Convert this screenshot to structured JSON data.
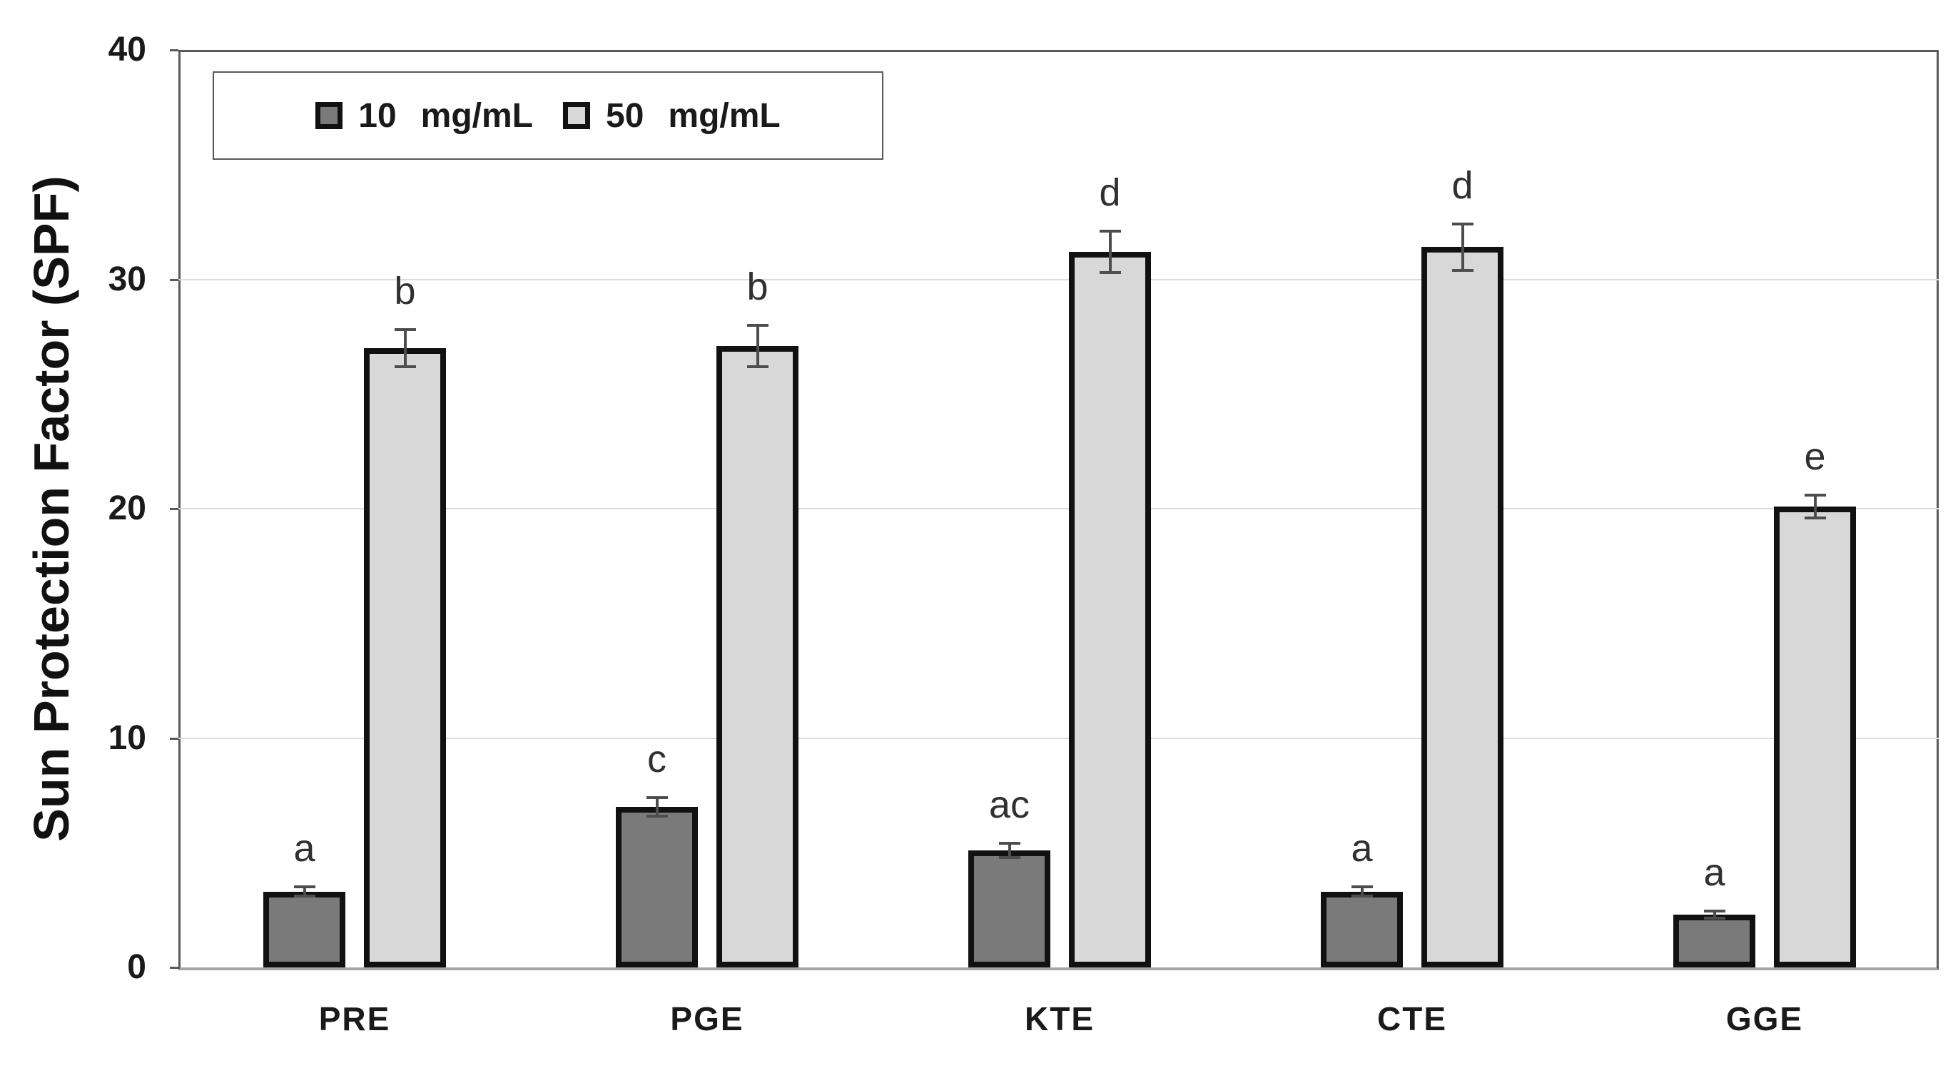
{
  "chart_data": {
    "type": "bar",
    "title": "",
    "xlabel": "",
    "ylabel": "Sun Protection Factor (SPF)",
    "ylim": [
      0,
      40
    ],
    "yticks": [
      0,
      10,
      20,
      30,
      40
    ],
    "grid": "horizontal",
    "legend_position": "top-left-inside",
    "categories": [
      "PRE",
      "PGE",
      "KTE",
      "CTE",
      "GGE"
    ],
    "series": [
      {
        "name": "10 mg/mL",
        "color": "#7a7a7a",
        "values": [
          3.3,
          7.0,
          5.1,
          3.3,
          2.3
        ],
        "errors": [
          0.2,
          0.4,
          0.3,
          0.2,
          0.15
        ],
        "sig_letters": [
          "a",
          "c",
          "ac",
          "a",
          "a"
        ]
      },
      {
        "name": "50 mg/mL",
        "color": "#d8d8d8",
        "values": [
          27.0,
          27.1,
          31.2,
          31.4,
          20.1
        ],
        "errors": [
          0.8,
          0.9,
          0.9,
          1.0,
          0.5
        ],
        "sig_letters": [
          "b",
          "b",
          "d",
          "d",
          "e"
        ]
      }
    ]
  },
  "legend": {
    "items": [
      {
        "value": "10",
        "unit": "mg/mL",
        "swatch": "#7a7a7a"
      },
      {
        "value": "50",
        "unit": "mg/mL",
        "swatch": "#d8d8d8"
      }
    ]
  },
  "colors": {
    "bar_border": "#111111",
    "gridline": "#dcdcdc",
    "frame": "#595959",
    "baseline": "#a6a6a6",
    "error_bar": "#4d4d4d",
    "text": "#1a1a1a"
  }
}
